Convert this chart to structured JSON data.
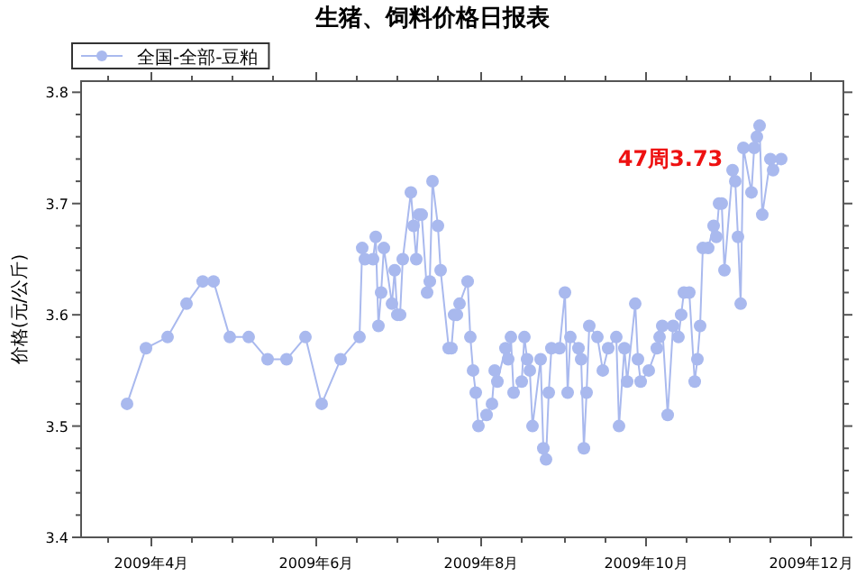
{
  "chart_data": {
    "type": "line",
    "title": "生猪、饲料价格日报表",
    "ylabel": "价格(元/公斤)",
    "annotations": [
      "47周3.73"
    ],
    "marker": "circle",
    "grid": false,
    "legend": "top left",
    "xlim": [
      "2009-03-06",
      "2009-12-13"
    ],
    "ylim": [
      3.4,
      3.81
    ],
    "xticks": [
      {
        "value": "2009-03-16",
        "label": null
      },
      {
        "value": "2009-04-01",
        "label": "2009年4月"
      },
      {
        "value": "2009-04-16",
        "label": null
      },
      {
        "value": "2009-05-01",
        "label": null
      },
      {
        "value": "2009-05-16",
        "label": null
      },
      {
        "value": "2009-06-01",
        "label": "2009年6月"
      },
      {
        "value": "2009-06-16",
        "label": null
      },
      {
        "value": "2009-07-01",
        "label": null
      },
      {
        "value": "2009-07-16",
        "label": null
      },
      {
        "value": "2009-08-01",
        "label": "2009年8月"
      },
      {
        "value": "2009-08-16",
        "label": null
      },
      {
        "value": "2009-09-01",
        "label": null
      },
      {
        "value": "2009-09-16",
        "label": null
      },
      {
        "value": "2009-10-01",
        "label": "2009年10月"
      },
      {
        "value": "2009-10-16",
        "label": null
      },
      {
        "value": "2009-11-01",
        "label": null
      },
      {
        "value": "2009-11-16",
        "label": null
      },
      {
        "value": "2009-12-01",
        "label": "2009年12月"
      }
    ],
    "yticks": [
      {
        "value": 3.4,
        "label": "3.4"
      },
      {
        "value": 3.42,
        "label": null
      },
      {
        "value": 3.44,
        "label": null
      },
      {
        "value": 3.46,
        "label": null
      },
      {
        "value": 3.48,
        "label": null
      },
      {
        "value": 3.5,
        "label": "3.5"
      },
      {
        "value": 3.52,
        "label": null
      },
      {
        "value": 3.54,
        "label": null
      },
      {
        "value": 3.56,
        "label": null
      },
      {
        "value": 3.58,
        "label": null
      },
      {
        "value": 3.6,
        "label": "3.6"
      },
      {
        "value": 3.62,
        "label": null
      },
      {
        "value": 3.64,
        "label": null
      },
      {
        "value": 3.66,
        "label": null
      },
      {
        "value": 3.68,
        "label": null
      },
      {
        "value": 3.7,
        "label": "3.7"
      },
      {
        "value": 3.72,
        "label": null
      },
      {
        "value": 3.74,
        "label": null
      },
      {
        "value": 3.76,
        "label": null
      },
      {
        "value": 3.78,
        "label": null
      },
      {
        "value": 3.8,
        "label": "3.8"
      }
    ],
    "series": [
      {
        "name": "全国-全部-豆粕",
        "color": "#a9b9ee",
        "x": [
          "2009-03-23",
          "2009-03-30",
          "2009-04-07",
          "2009-04-14",
          "2009-04-20",
          "2009-04-24",
          "2009-04-30",
          "2009-05-07",
          "2009-05-14",
          "2009-05-21",
          "2009-05-28",
          "2009-06-03",
          "2009-06-10",
          "2009-06-17",
          "2009-06-18",
          "2009-06-19",
          "2009-06-22",
          "2009-06-23",
          "2009-06-24",
          "2009-06-25",
          "2009-06-26",
          "2009-06-29",
          "2009-06-30",
          "2009-07-01",
          "2009-07-02",
          "2009-07-03",
          "2009-07-06",
          "2009-07-07",
          "2009-07-08",
          "2009-07-09",
          "2009-07-10",
          "2009-07-12",
          "2009-07-13",
          "2009-07-14",
          "2009-07-16",
          "2009-07-17",
          "2009-07-20",
          "2009-07-21",
          "2009-07-22",
          "2009-07-23",
          "2009-07-24",
          "2009-07-27",
          "2009-07-28",
          "2009-07-29",
          "2009-07-30",
          "2009-07-31",
          "2009-08-03",
          "2009-08-05",
          "2009-08-06",
          "2009-08-07",
          "2009-08-10",
          "2009-08-11",
          "2009-08-12",
          "2009-08-13",
          "2009-08-16",
          "2009-08-17",
          "2009-08-18",
          "2009-08-19",
          "2009-08-20",
          "2009-08-23",
          "2009-08-24",
          "2009-08-25",
          "2009-08-26",
          "2009-08-27",
          "2009-08-30",
          "2009-09-01",
          "2009-09-02",
          "2009-09-03",
          "2009-09-06",
          "2009-09-07",
          "2009-09-08",
          "2009-09-09",
          "2009-09-10",
          "2009-09-13",
          "2009-09-15",
          "2009-09-17",
          "2009-09-20",
          "2009-09-21",
          "2009-09-23",
          "2009-09-24",
          "2009-09-27",
          "2009-09-28",
          "2009-09-29",
          "2009-10-02",
          "2009-10-05",
          "2009-10-06",
          "2009-10-07",
          "2009-10-09",
          "2009-10-11",
          "2009-10-13",
          "2009-10-14",
          "2009-10-15",
          "2009-10-17",
          "2009-10-19",
          "2009-10-20",
          "2009-10-21",
          "2009-10-22",
          "2009-10-24",
          "2009-10-26",
          "2009-10-27",
          "2009-10-28",
          "2009-10-29",
          "2009-10-30",
          "2009-11-02",
          "2009-11-03",
          "2009-11-04",
          "2009-11-05",
          "2009-11-06",
          "2009-11-09",
          "2009-11-10",
          "2009-11-11",
          "2009-11-12",
          "2009-11-13",
          "2009-11-16",
          "2009-11-17",
          "2009-11-20"
        ],
        "values": [
          3.52,
          3.57,
          3.58,
          3.61,
          3.63,
          3.63,
          3.58,
          3.58,
          3.56,
          3.56,
          3.58,
          3.52,
          3.56,
          3.58,
          3.66,
          3.65,
          3.65,
          3.67,
          3.59,
          3.62,
          3.66,
          3.61,
          3.64,
          3.6,
          3.6,
          3.65,
          3.71,
          3.68,
          3.65,
          3.69,
          3.69,
          3.62,
          3.63,
          3.72,
          3.68,
          3.64,
          3.57,
          3.57,
          3.6,
          3.6,
          3.61,
          3.63,
          3.58,
          3.55,
          3.53,
          3.5,
          3.51,
          3.52,
          3.55,
          3.54,
          3.57,
          3.56,
          3.58,
          3.53,
          3.54,
          3.58,
          3.56,
          3.55,
          3.5,
          3.56,
          3.48,
          3.47,
          3.53,
          3.57,
          3.57,
          3.62,
          3.53,
          3.58,
          3.57,
          3.56,
          3.48,
          3.53,
          3.59,
          3.58,
          3.55,
          3.57,
          3.58,
          3.5,
          3.57,
          3.54,
          3.61,
          3.56,
          3.54,
          3.55,
          3.57,
          3.58,
          3.59,
          3.51,
          3.59,
          3.58,
          3.6,
          3.62,
          3.62,
          3.54,
          3.56,
          3.59,
          3.66,
          3.66,
          3.68,
          3.67,
          3.7,
          3.7,
          3.64,
          3.73,
          3.72,
          3.67,
          3.61,
          3.75,
          3.71,
          3.75,
          3.76,
          3.77,
          3.69,
          3.74,
          3.73,
          3.74
        ]
      }
    ]
  }
}
